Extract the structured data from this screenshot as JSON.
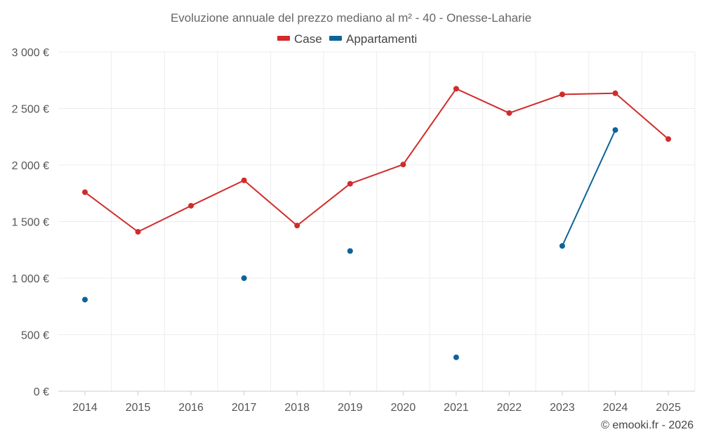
{
  "chart_data": {
    "type": "line",
    "title": "Evoluzione annuale del prezzo mediano al m² - 40 - Onesse-Laharie",
    "categories": [
      "2014",
      "2015",
      "2016",
      "2017",
      "2018",
      "2019",
      "2020",
      "2021",
      "2022",
      "2023",
      "2024",
      "2025"
    ],
    "series": [
      {
        "name": "Case",
        "color": "#d22b2b",
        "values": [
          1760,
          1410,
          1640,
          1865,
          1465,
          1835,
          2005,
          2675,
          2460,
          2625,
          2635,
          2230
        ]
      },
      {
        "name": "Appartamenti",
        "color": "#0d6399",
        "values": [
          810,
          null,
          null,
          1000,
          null,
          1240,
          null,
          300,
          null,
          1285,
          2310,
          null
        ]
      }
    ],
    "y_ticks": [
      "0 €",
      "500 €",
      "1 000 €",
      "1 500 €",
      "2 000 €",
      "2 500 €",
      "3 000 €"
    ],
    "y_tick_values": [
      0,
      500,
      1000,
      1500,
      2000,
      2500,
      3000
    ],
    "ylim": [
      0,
      3000
    ],
    "xlabel": "",
    "ylabel": "",
    "grid": true,
    "legend_position": "top-center"
  },
  "credit": "© emooki.fr - 2026"
}
